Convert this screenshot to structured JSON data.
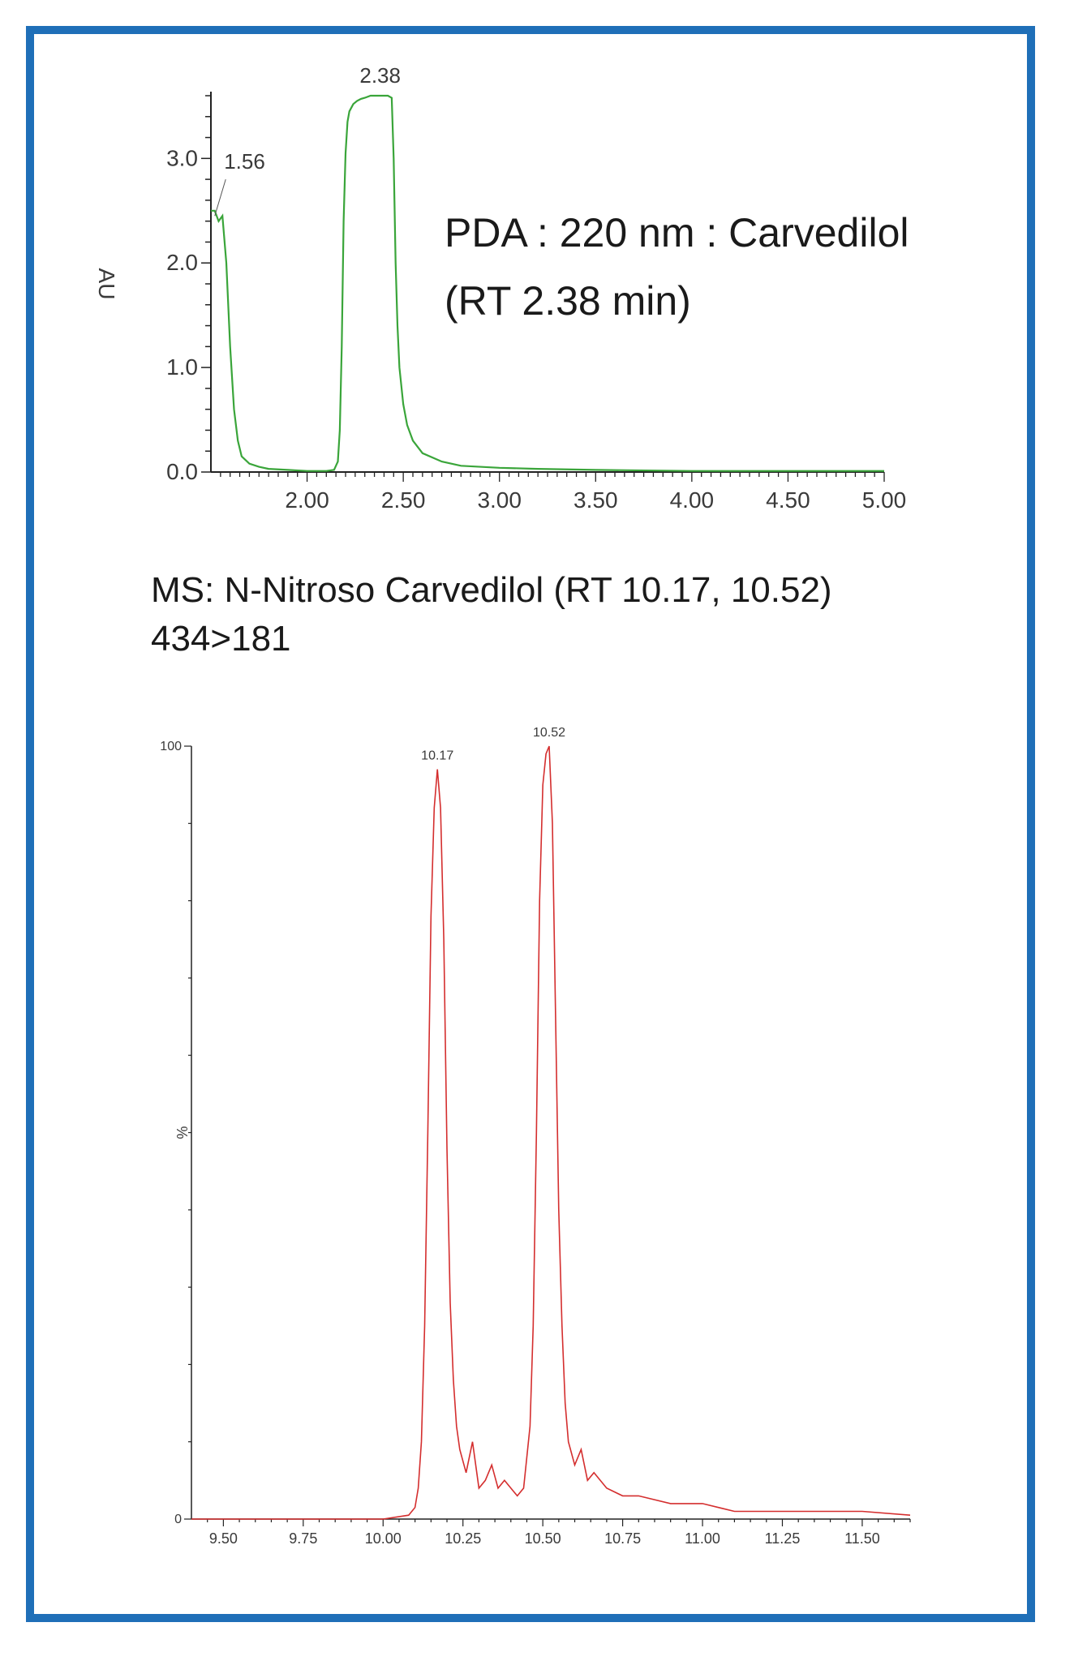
{
  "chart_data": [
    {
      "type": "line",
      "ylabel": "AU",
      "ylim": [
        0,
        3.6
      ],
      "xlim": [
        1.5,
        5.0
      ],
      "yticks": [
        "0.0",
        "1.0",
        "2.0",
        "3.0"
      ],
      "xticks": [
        "2.00",
        "2.50",
        "3.00",
        "3.50",
        "4.00",
        "4.50",
        "5.00"
      ],
      "annotation_lines": [
        "PDA : 220 nm : Carvedilol",
        "(RT 2.38 min)"
      ],
      "peak_labels": [
        "1.56",
        "2.38"
      ],
      "color": "#3aa53a",
      "series": [
        {
          "x": [
            1.5,
            1.52,
            1.54,
            1.56,
            1.58,
            1.6,
            1.62,
            1.64,
            1.66,
            1.7,
            1.75,
            1.8,
            1.9,
            2.0,
            2.1,
            2.14,
            2.16,
            2.17,
            2.18,
            2.19,
            2.2,
            2.21,
            2.22,
            2.24,
            2.26,
            2.28,
            2.3,
            2.33,
            2.36,
            2.38,
            2.4,
            2.42,
            2.44,
            2.45,
            2.46,
            2.47,
            2.48,
            2.5,
            2.52,
            2.55,
            2.6,
            2.7,
            2.8,
            3.0,
            3.2,
            3.5,
            4.0,
            4.5,
            5.0
          ],
          "y": [
            2.5,
            2.5,
            2.4,
            2.45,
            2.0,
            1.2,
            0.6,
            0.3,
            0.15,
            0.08,
            0.05,
            0.03,
            0.02,
            0.01,
            0.01,
            0.02,
            0.1,
            0.4,
            1.2,
            2.4,
            3.05,
            3.35,
            3.45,
            3.52,
            3.55,
            3.57,
            3.58,
            3.6,
            3.6,
            3.6,
            3.6,
            3.6,
            3.58,
            3.0,
            2.0,
            1.4,
            1.0,
            0.65,
            0.45,
            0.3,
            0.18,
            0.1,
            0.06,
            0.04,
            0.03,
            0.02,
            0.01,
            0.01,
            0.01
          ]
        }
      ]
    },
    {
      "type": "line",
      "ylabel": "%",
      "ylim": [
        0,
        100
      ],
      "xlim": [
        9.4,
        11.65
      ],
      "yticks": [
        "0",
        "100"
      ],
      "xticks": [
        "9.50",
        "9.75",
        "10.00",
        "10.25",
        "10.50",
        "10.75",
        "11.00",
        "11.25",
        "11.50"
      ],
      "title_lines": [
        "MS: N-Nitroso Carvedilol (RT 10.17, 10.52)",
        "434>181"
      ],
      "peak_labels": [
        "10.17",
        "10.52"
      ],
      "color": "#d42e2e",
      "series": [
        {
          "x": [
            9.4,
            9.6,
            9.8,
            10.0,
            10.08,
            10.1,
            10.11,
            10.12,
            10.13,
            10.14,
            10.15,
            10.16,
            10.17,
            10.18,
            10.19,
            10.2,
            10.21,
            10.22,
            10.23,
            10.24,
            10.26,
            10.28,
            10.3,
            10.32,
            10.34,
            10.36,
            10.38,
            10.4,
            10.42,
            10.44,
            10.46,
            10.47,
            10.48,
            10.49,
            10.5,
            10.51,
            10.52,
            10.53,
            10.54,
            10.55,
            10.56,
            10.57,
            10.58,
            10.6,
            10.62,
            10.64,
            10.66,
            10.7,
            10.75,
            10.8,
            10.9,
            11.0,
            11.1,
            11.2,
            11.3,
            11.4,
            11.5,
            11.65
          ],
          "y": [
            0,
            0,
            0,
            0,
            0.5,
            1.5,
            4,
            10,
            25,
            50,
            78,
            92,
            97,
            92,
            75,
            48,
            28,
            18,
            12,
            9,
            6,
            10,
            4,
            5,
            7,
            4,
            5,
            4,
            3,
            4,
            12,
            25,
            50,
            80,
            95,
            99,
            100,
            90,
            65,
            40,
            25,
            15,
            10,
            7,
            9,
            5,
            6,
            4,
            3,
            3,
            2,
            2,
            1,
            1,
            1,
            1,
            1,
            0.5
          ]
        }
      ]
    }
  ]
}
